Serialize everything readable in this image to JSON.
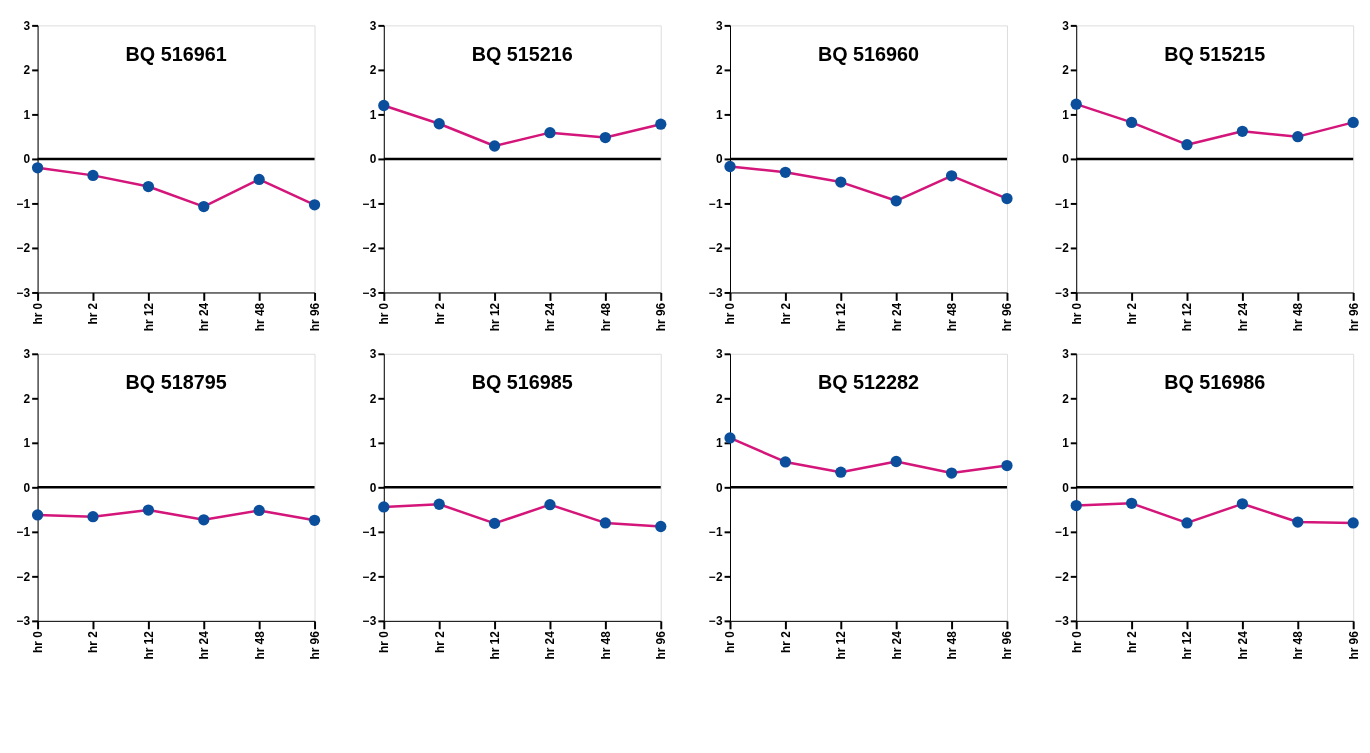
{
  "chart_data": [
    {
      "type": "line",
      "title": "BQ 516961",
      "categories": [
        "hr 0",
        "hr 2",
        "hr 12",
        "hr 24",
        "hr 48",
        "hr 96"
      ],
      "series": [
        {
          "color": "#d4157a",
          "values": [
            -0.2,
            -0.37,
            -0.62,
            -1.07,
            -0.46,
            -1.03
          ]
        }
      ],
      "colors": [
        "#0b4f9c",
        "#0b4f9c",
        "#0b4f9c",
        "#0b4f9c",
        "#0b4f9c",
        "#0b4f9c"
      ],
      "ylim": [
        -3,
        3
      ],
      "yticks": [
        -3,
        -2,
        -1,
        0,
        1,
        2,
        3
      ],
      "marker": "circle",
      "grid": false,
      "ref_lines": [
        {
          "axis": "y",
          "value": 0,
          "color": "#000000"
        }
      ]
    },
    {
      "type": "line",
      "title": "BQ 515216",
      "categories": [
        "hr 0",
        "hr 2",
        "hr 12",
        "hr 24",
        "hr 48",
        "hr 96"
      ],
      "series": [
        {
          "color": "#d4157a",
          "values": [
            1.2,
            0.79,
            0.29,
            0.59,
            0.48,
            0.78
          ]
        }
      ],
      "colors": [
        "#0b4f9c",
        "#0b4f9c",
        "#0b4f9c",
        "#0b4f9c",
        "#0b4f9c",
        "#0b4f9c"
      ],
      "ylim": [
        -3,
        3
      ],
      "yticks": [
        -3,
        -2,
        -1,
        0,
        1,
        2,
        3
      ],
      "marker": "circle",
      "grid": false,
      "ref_lines": [
        {
          "axis": "y",
          "value": 0,
          "color": "#000000"
        }
      ]
    },
    {
      "type": "line",
      "title": "BQ 516960",
      "categories": [
        "hr 0",
        "hr 2",
        "hr 12",
        "hr 24",
        "hr 48",
        "hr 96"
      ],
      "series": [
        {
          "color": "#d4157a",
          "values": [
            -0.17,
            -0.3,
            -0.52,
            -0.94,
            -0.38,
            -0.89
          ]
        }
      ],
      "colors": [
        "#0b4f9c",
        "#0b4f9c",
        "#0b4f9c",
        "#0b4f9c",
        "#0b4f9c",
        "#0b4f9c"
      ],
      "ylim": [
        -3,
        3
      ],
      "yticks": [
        -3,
        -2,
        -1,
        0,
        1,
        2,
        3
      ],
      "marker": "circle",
      "grid": false,
      "ref_lines": [
        {
          "axis": "y",
          "value": 0,
          "color": "#000000"
        }
      ]
    },
    {
      "type": "line",
      "title": "BQ 515215",
      "categories": [
        "hr 0",
        "hr 2",
        "hr 12",
        "hr 24",
        "hr 48",
        "hr 96"
      ],
      "series": [
        {
          "color": "#d4157a",
          "values": [
            1.23,
            0.82,
            0.32,
            0.62,
            0.5,
            0.82
          ]
        }
      ],
      "colors": [
        "#0b4f9c",
        "#0b4f9c",
        "#0b4f9c",
        "#0b4f9c",
        "#0b4f9c",
        "#0b4f9c"
      ],
      "ylim": [
        -3,
        3
      ],
      "yticks": [
        -3,
        -2,
        -1,
        0,
        1,
        2,
        3
      ],
      "marker": "circle",
      "grid": false,
      "ref_lines": [
        {
          "axis": "y",
          "value": 0,
          "color": "#000000"
        }
      ]
    },
    {
      "type": "line",
      "title": "BQ 518795",
      "categories": [
        "hr 0",
        "hr 2",
        "hr 12",
        "hr 24",
        "hr 48",
        "hr 96"
      ],
      "series": [
        {
          "color": "#d4157a",
          "values": [
            -0.62,
            -0.66,
            -0.51,
            -0.73,
            -0.52,
            -0.74
          ]
        }
      ],
      "colors": [
        "#0b4f9c",
        "#0b4f9c",
        "#0b4f9c",
        "#0b4f9c",
        "#0b4f9c",
        "#0b4f9c"
      ],
      "ylim": [
        -3,
        3
      ],
      "yticks": [
        -3,
        -2,
        -1,
        0,
        1,
        2,
        3
      ],
      "marker": "circle",
      "grid": false,
      "ref_lines": [
        {
          "axis": "y",
          "value": 0,
          "color": "#000000"
        }
      ]
    },
    {
      "type": "line",
      "title": "BQ 516985",
      "categories": [
        "hr 0",
        "hr 2",
        "hr 12",
        "hr 24",
        "hr 48",
        "hr 96"
      ],
      "series": [
        {
          "color": "#d4157a",
          "values": [
            -0.44,
            -0.38,
            -0.81,
            -0.39,
            -0.8,
            -0.88
          ]
        }
      ],
      "colors": [
        "#0b4f9c",
        "#0b4f9c",
        "#0b4f9c",
        "#0b4f9c",
        "#0b4f9c",
        "#0b4f9c"
      ],
      "ylim": [
        -3,
        3
      ],
      "yticks": [
        -3,
        -2,
        -1,
        0,
        1,
        2,
        3
      ],
      "marker": "circle",
      "grid": false,
      "ref_lines": [
        {
          "axis": "y",
          "value": 0,
          "color": "#000000"
        }
      ]
    },
    {
      "type": "line",
      "title": "BQ 512282",
      "categories": [
        "hr 0",
        "hr 2",
        "hr 12",
        "hr 24",
        "hr 48",
        "hr 96"
      ],
      "series": [
        {
          "color": "#d4157a",
          "values": [
            1.11,
            0.57,
            0.34,
            0.58,
            0.32,
            0.49
          ]
        }
      ],
      "colors": [
        "#0b4f9c",
        "#0b4f9c",
        "#0b4f9c",
        "#0b4f9c",
        "#0b4f9c",
        "#0b4f9c"
      ],
      "ylim": [
        -3,
        3
      ],
      "yticks": [
        -3,
        -2,
        -1,
        0,
        1,
        2,
        3
      ],
      "marker": "circle",
      "grid": false,
      "ref_lines": [
        {
          "axis": "y",
          "value": 0,
          "color": "#000000"
        }
      ]
    },
    {
      "type": "line",
      "title": "BQ 516986",
      "categories": [
        "hr 0",
        "hr 2",
        "hr 12",
        "hr 24",
        "hr 48",
        "hr 96"
      ],
      "series": [
        {
          "color": "#d4157a",
          "values": [
            -0.41,
            -0.36,
            -0.8,
            -0.37,
            -0.78,
            -0.8
          ]
        }
      ],
      "colors": [
        "#0b4f9c",
        "#0b4f9c",
        "#0b4f9c",
        "#0b4f9c",
        "#0b4f9c",
        "#0b4f9c"
      ],
      "ylim": [
        -3,
        3
      ],
      "yticks": [
        -3,
        -2,
        -1,
        0,
        1,
        2,
        3
      ],
      "marker": "circle",
      "grid": false,
      "ref_lines": [
        {
          "axis": "y",
          "value": 0,
          "color": "#000000"
        }
      ]
    }
  ]
}
